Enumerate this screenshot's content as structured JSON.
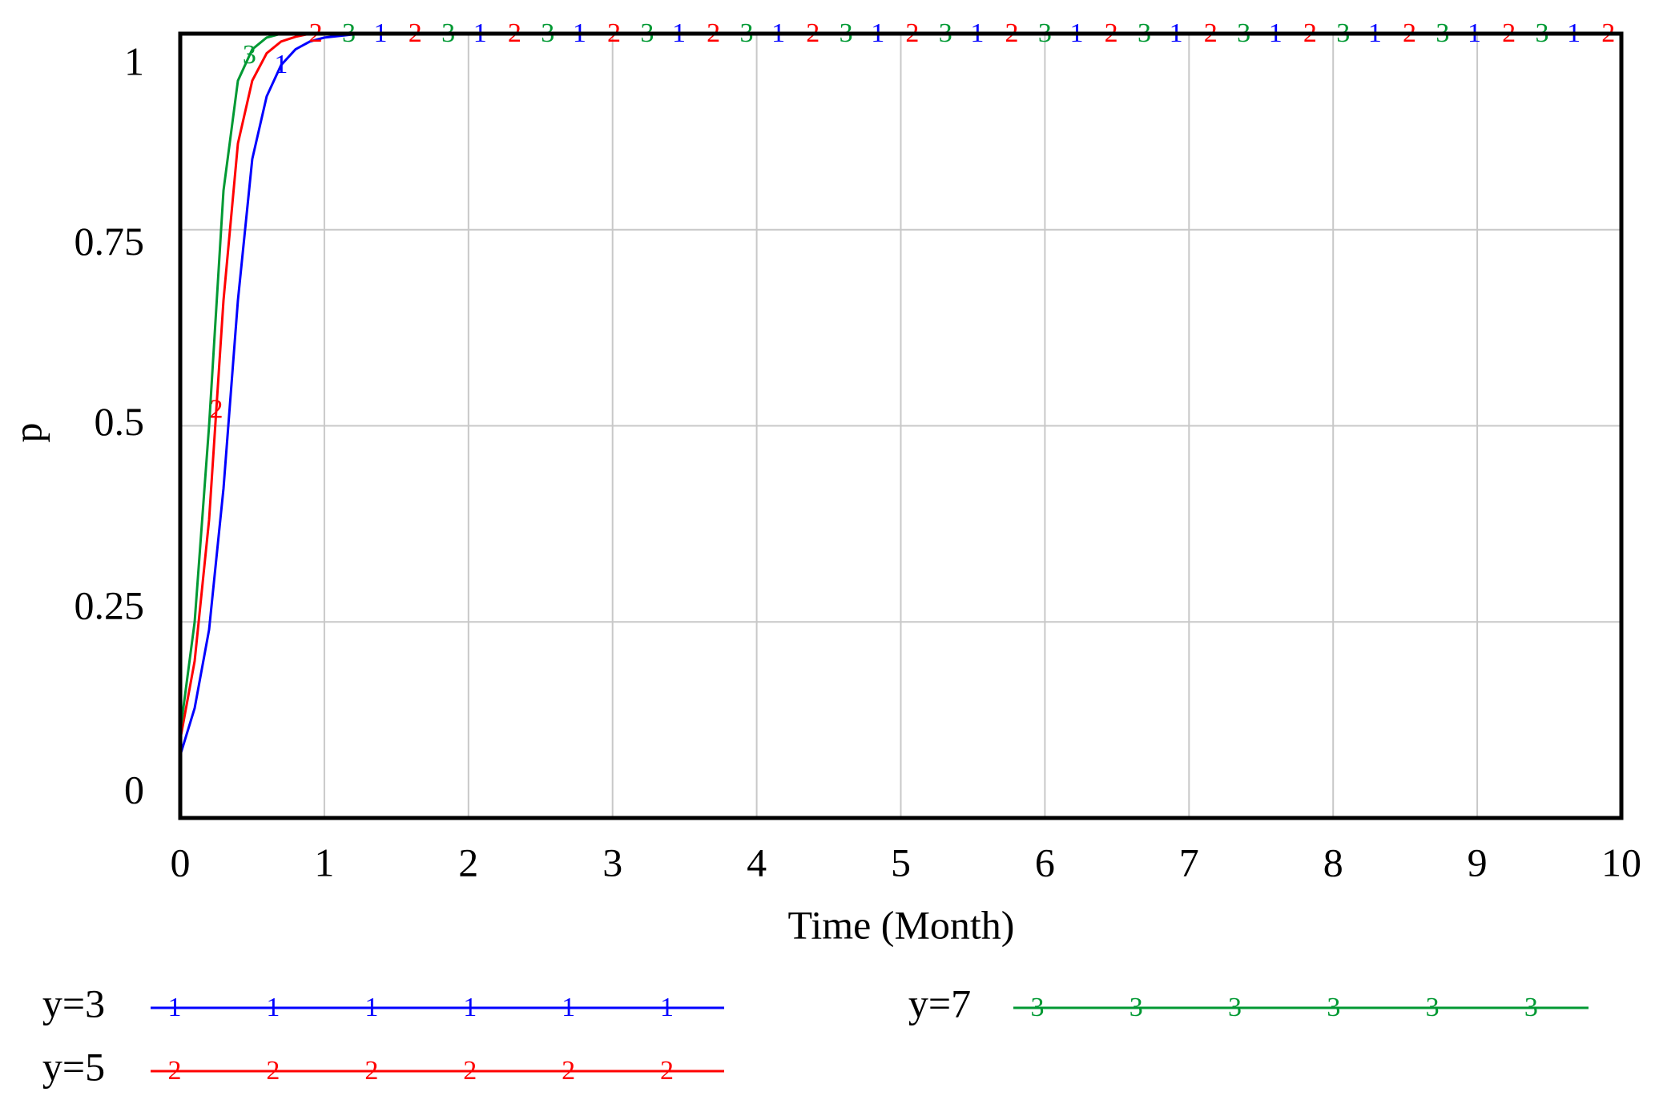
{
  "chart_data": {
    "type": "line",
    "x_label": "Time (Month)",
    "y_label": "p",
    "x": [
      0,
      0.1,
      0.2,
      0.3,
      0.4,
      0.5,
      0.6,
      0.7,
      0.8,
      0.9,
      1,
      1.25,
      1.5,
      2,
      3,
      4,
      5,
      6,
      7,
      8,
      9,
      10
    ],
    "series": [
      {
        "name": "y=3",
        "marker": "1",
        "color": "#0000ff",
        "values": [
          0.08,
          0.14,
          0.24,
          0.42,
          0.66,
          0.84,
          0.92,
          0.96,
          0.98,
          0.99,
          0.995,
          1,
          1,
          1,
          1,
          1,
          1,
          1,
          1,
          1,
          1,
          1
        ]
      },
      {
        "name": "y=5",
        "marker": "2",
        "color": "#ff0000",
        "values": [
          0.1,
          0.2,
          0.38,
          0.66,
          0.86,
          0.94,
          0.975,
          0.99,
          0.996,
          1,
          1,
          1,
          1,
          1,
          1,
          1,
          1,
          1,
          1,
          1,
          1,
          1
        ]
      },
      {
        "name": "y=7",
        "marker": "3",
        "color": "#009933",
        "values": [
          0.11,
          0.25,
          0.5,
          0.8,
          0.94,
          0.98,
          0.995,
          1,
          1,
          1,
          1,
          1,
          1,
          1,
          1,
          1,
          1,
          1,
          1,
          1,
          1,
          1
        ]
      }
    ],
    "xlim": [
      0,
      10
    ],
    "xticks": [
      0,
      1,
      2,
      3,
      4,
      5,
      6,
      7,
      8,
      9,
      10
    ],
    "ylim": [
      0,
      1
    ],
    "yticks": [
      0,
      0.25,
      0.5,
      0.75,
      1
    ],
    "grid": true
  }
}
